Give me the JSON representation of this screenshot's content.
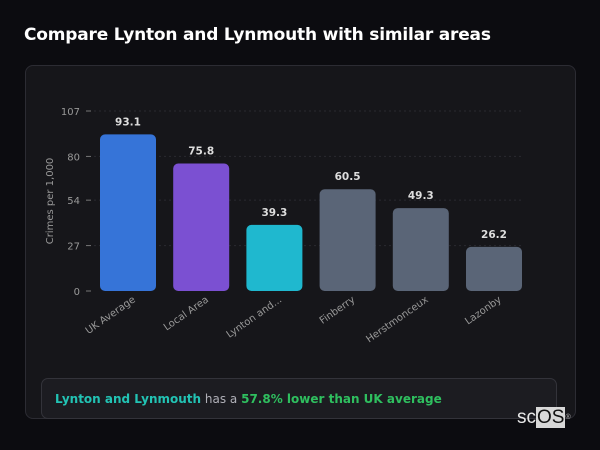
{
  "title": "Compare Lynton and Lynmouth with similar areas",
  "chart_data": {
    "type": "bar",
    "categories": [
      "UK Average",
      "Local Area",
      "Lynton and...",
      "Finberry",
      "Herstmonceux",
      "Lazonby"
    ],
    "values": [
      93.1,
      75.8,
      39.3,
      60.5,
      49.3,
      26.2
    ],
    "value_labels": [
      "93.1",
      "75.8",
      "39.3",
      "60.5",
      "49.3",
      "26.2"
    ],
    "colors": [
      "#3674d8",
      "#7b50d2",
      "#1fb8cf",
      "#5a6577",
      "#5a6577",
      "#5a6577"
    ],
    "ylabel": "Crimes per 1,000",
    "xlabel": "",
    "ylim": [
      0,
      107
    ],
    "yticks": [
      0,
      27,
      54,
      80,
      107
    ],
    "grid": true
  },
  "summary": {
    "area": "Lynton and Lynmouth",
    "middle": " has a ",
    "comparison": "57.8% lower than UK average"
  },
  "logo": {
    "text_a": "sc",
    "text_b": "OS",
    "mark": "®"
  }
}
